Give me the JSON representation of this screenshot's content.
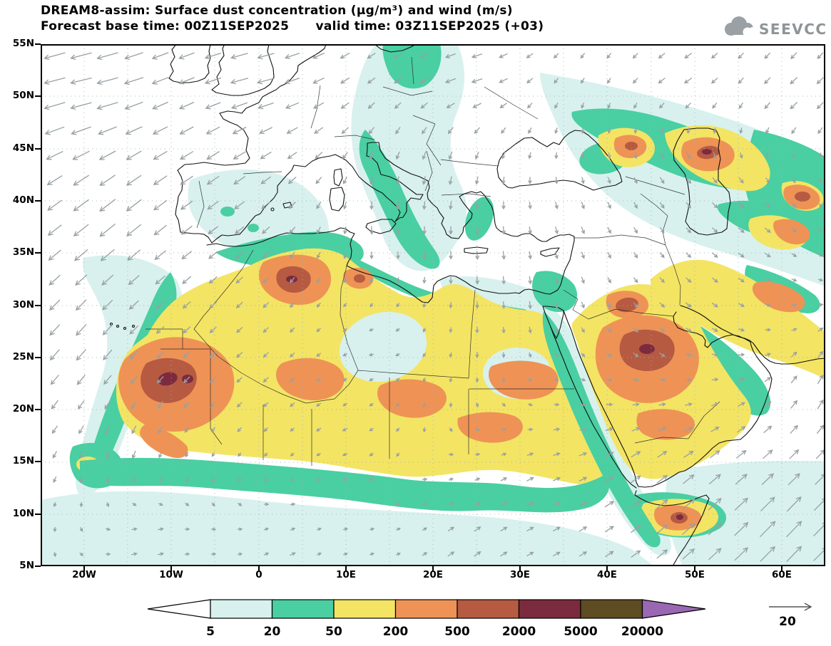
{
  "header": {
    "title": "DREAM8-assim: Surface dust concentration (μg/m³) and wind (m/s)",
    "subtitle": "Forecast base time: 00Z11SEP2025      valid time: 03Z11SEP2025 (+03)",
    "logo_text": "SEEVCCC"
  },
  "map": {
    "lat_labels": [
      "55N",
      "50N",
      "45N",
      "40N",
      "35N",
      "30N",
      "25N",
      "20N",
      "15N",
      "10N",
      "5N"
    ],
    "lon_labels": [
      "20W",
      "10W",
      "0",
      "10E",
      "20E",
      "30E",
      "40E",
      "50E",
      "60E"
    ]
  },
  "legend": {
    "values": [
      "5",
      "20",
      "50",
      "200",
      "500",
      "2000",
      "5000",
      "20000"
    ],
    "colors": [
      "#ffffff",
      "#d8f1ee",
      "#49cfa2",
      "#f3e464",
      "#ee9355",
      "#b65a42",
      "#7c2b3e",
      "#5e4c22",
      "#9a68b2"
    ],
    "wind_scale_label": "20",
    "wind_color": "#98a0a4"
  }
}
